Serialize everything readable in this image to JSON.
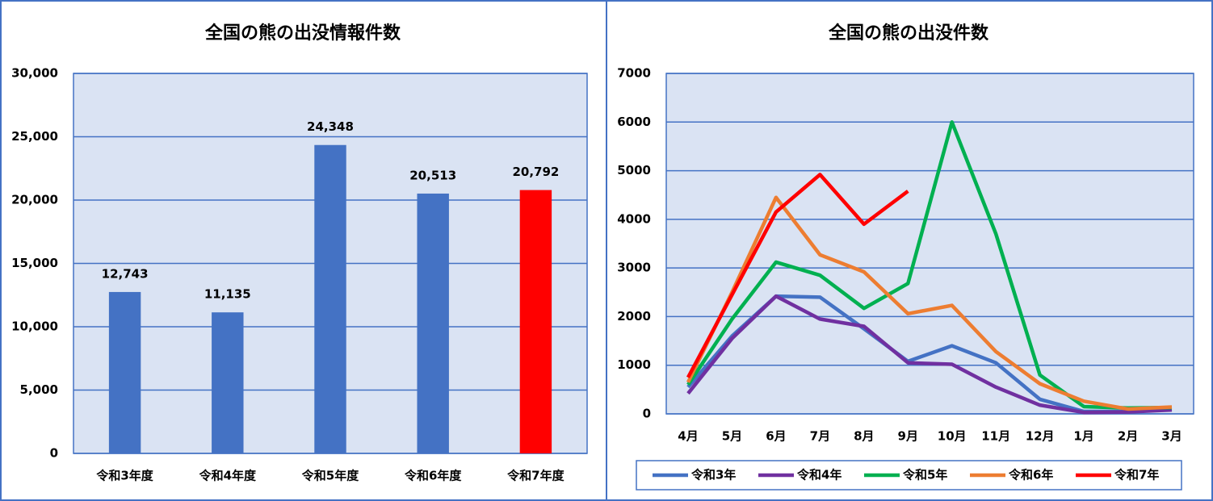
{
  "chart_data": [
    {
      "type": "bar",
      "title": "全国の熊の出没情報件数",
      "categories": [
        "令和3年度",
        "令和4年度",
        "令和5年度",
        "令和6年度",
        "令和7年度"
      ],
      "values": [
        12743,
        11135,
        24348,
        20513,
        20792
      ],
      "value_labels": [
        "12,743",
        "11,135",
        "24,348",
        "20,513",
        "20,792"
      ],
      "colors": [
        "#4472c4",
        "#4472c4",
        "#4472c4",
        "#4472c4",
        "#ff0000"
      ],
      "ylim": [
        0,
        30000
      ],
      "yticks": [
        0,
        {
          "value": 5000,
          "label": "5,000"
        },
        {
          "value": 10000,
          "label": "10,000"
        },
        {
          "value": 15000,
          "label": "15,000"
        },
        {
          "value": 20000,
          "label": "20,000"
        },
        {
          "value": 25000,
          "label": "25,000"
        },
        {
          "value": 30000,
          "label": "30,000"
        }
      ],
      "grid": true
    },
    {
      "type": "line",
      "title": "全国の熊の出没件数",
      "categories": [
        "4月",
        "5月",
        "6月",
        "7月",
        "8月",
        "9月",
        "10月",
        "11月",
        "12月",
        "1月",
        "2月",
        "3月"
      ],
      "series": [
        {
          "name": "令和3年",
          "color": "#4472c4",
          "values": [
            550,
            1600,
            2420,
            2400,
            1750,
            1080,
            1400,
            1050,
            300,
            50,
            50,
            100
          ]
        },
        {
          "name": "令和4年",
          "color": "#7030a0",
          "values": [
            420,
            1550,
            2420,
            1950,
            1800,
            1050,
            1020,
            550,
            180,
            30,
            40,
            80
          ]
        },
        {
          "name": "令和5年",
          "color": "#00b050",
          "values": [
            600,
            1950,
            3120,
            2850,
            2170,
            2680,
            6000,
            3700,
            800,
            150,
            120,
            130
          ]
        },
        {
          "name": "令和6年",
          "color": "#ed7d31",
          "values": [
            650,
            2500,
            4450,
            3270,
            2920,
            2060,
            2230,
            1280,
            620,
            260,
            100,
            140
          ]
        },
        {
          "name": "令和7年",
          "color": "#ff0000",
          "values": [
            750,
            2450,
            4150,
            4920,
            3900,
            4580,
            null,
            null,
            null,
            null,
            null,
            null
          ]
        }
      ],
      "ylim": [
        0,
        7000
      ],
      "yticks": [
        0,
        1000,
        2000,
        3000,
        4000,
        5000,
        6000,
        7000
      ],
      "grid": true,
      "legend": "bottom"
    }
  ]
}
